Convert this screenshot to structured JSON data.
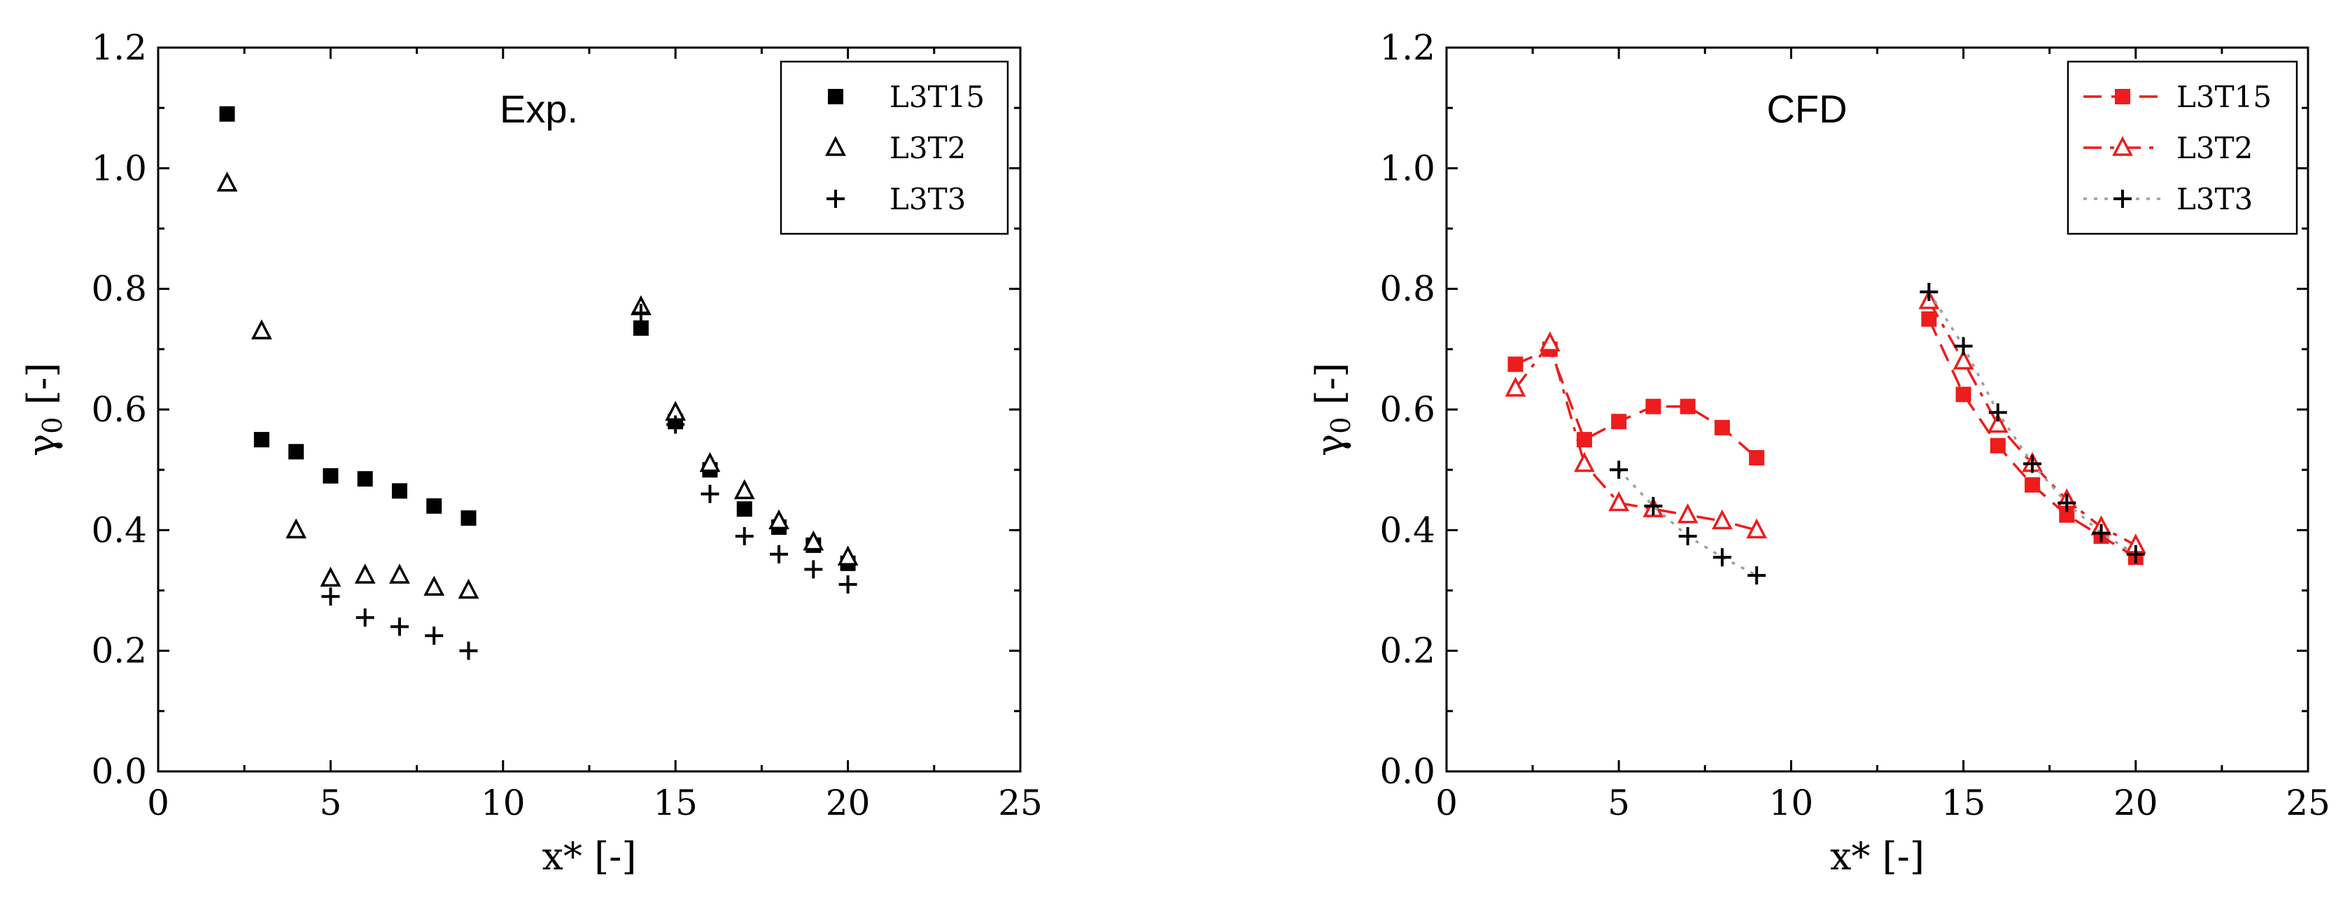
{
  "chart_data": [
    {
      "type": "scatter",
      "panel_label": "Exp.",
      "xlabel": "x* [-]",
      "ylabel_symbol": "γ",
      "ylabel_sub": "0",
      "ylabel_unit": " [-]",
      "xlim": [
        0,
        25
      ],
      "ylim": [
        0,
        1.2
      ],
      "xticks": [
        "0",
        "5",
        "10",
        "15",
        "20",
        "25"
      ],
      "yticks": [
        "0.0",
        "0.2",
        "0.4",
        "0.6",
        "0.8",
        "1.0",
        "1.2"
      ],
      "grid": false,
      "legend_position": "top-right",
      "series": [
        {
          "name": "L3T15",
          "marker": "square-filled",
          "color": "#000000",
          "x": [
            2,
            3,
            4,
            5,
            6,
            7,
            8,
            9,
            14,
            15,
            16,
            17,
            18,
            19,
            20
          ],
          "y": [
            1.09,
            0.55,
            0.53,
            0.49,
            0.485,
            0.465,
            0.44,
            0.42,
            0.735,
            0.58,
            0.5,
            0.435,
            0.405,
            0.375,
            0.345
          ]
        },
        {
          "name": "L3T2",
          "marker": "triangle-open",
          "color": "#000000",
          "x": [
            2,
            3,
            4,
            5,
            6,
            7,
            8,
            9,
            14,
            15,
            16,
            17,
            18,
            19,
            20
          ],
          "y": [
            0.975,
            0.73,
            0.4,
            0.32,
            0.325,
            0.325,
            0.305,
            0.3,
            0.77,
            0.595,
            0.51,
            0.465,
            0.415,
            0.38,
            0.355
          ]
        },
        {
          "name": "L3T3",
          "marker": "plus",
          "color": "#000000",
          "x": [
            5,
            6,
            7,
            8,
            9,
            14,
            15,
            16,
            17,
            18,
            19,
            20
          ],
          "y": [
            0.29,
            0.255,
            0.24,
            0.225,
            0.2,
            0.76,
            0.575,
            0.46,
            0.39,
            0.36,
            0.335,
            0.31
          ]
        }
      ]
    },
    {
      "type": "line",
      "panel_label": "CFD",
      "xlabel": "x* [-]",
      "ylabel_symbol": "γ",
      "ylabel_sub": "0",
      "ylabel_unit": " [-]",
      "xlim": [
        0,
        25
      ],
      "ylim": [
        0,
        1.2
      ],
      "xticks": [
        "0",
        "5",
        "10",
        "15",
        "20",
        "25"
      ],
      "yticks": [
        "0.0",
        "0.2",
        "0.4",
        "0.6",
        "0.8",
        "1.0",
        "1.2"
      ],
      "grid": false,
      "legend_position": "top-right",
      "series": [
        {
          "name": "L3T15",
          "marker": "square-filled",
          "color": "#ee1c1c",
          "line": "dashed",
          "x": [
            2,
            3,
            4,
            5,
            6,
            7,
            8,
            9,
            14,
            15,
            16,
            17,
            18,
            19,
            20
          ],
          "y": [
            0.675,
            0.7,
            0.55,
            0.58,
            0.605,
            0.605,
            0.57,
            0.52,
            0.75,
            0.625,
            0.54,
            0.475,
            0.425,
            0.39,
            0.355
          ],
          "segments": [
            [
              0,
              7
            ],
            [
              8,
              14
            ]
          ]
        },
        {
          "name": "L3T2",
          "marker": "triangle-open",
          "color": "#ee1c1c",
          "line": "dashdot",
          "x": [
            2,
            3,
            4,
            5,
            6,
            7,
            8,
            9,
            14,
            15,
            16,
            17,
            18,
            19,
            20
          ],
          "y": [
            0.635,
            0.71,
            0.51,
            0.445,
            0.435,
            0.425,
            0.415,
            0.4,
            0.78,
            0.68,
            0.575,
            0.51,
            0.45,
            0.405,
            0.375
          ],
          "segments": [
            [
              0,
              7
            ],
            [
              8,
              14
            ]
          ]
        },
        {
          "name": "L3T3",
          "marker": "plus",
          "color": "#000000",
          "line_color": "#a0a0a0",
          "line": "dotted",
          "x": [
            5,
            6,
            7,
            8,
            9,
            14,
            15,
            16,
            17,
            18,
            19,
            20
          ],
          "y": [
            0.5,
            0.44,
            0.39,
            0.355,
            0.325,
            0.795,
            0.705,
            0.595,
            0.51,
            0.445,
            0.395,
            0.36
          ],
          "segments": [
            [
              0,
              4
            ],
            [
              5,
              11
            ]
          ]
        }
      ]
    }
  ]
}
